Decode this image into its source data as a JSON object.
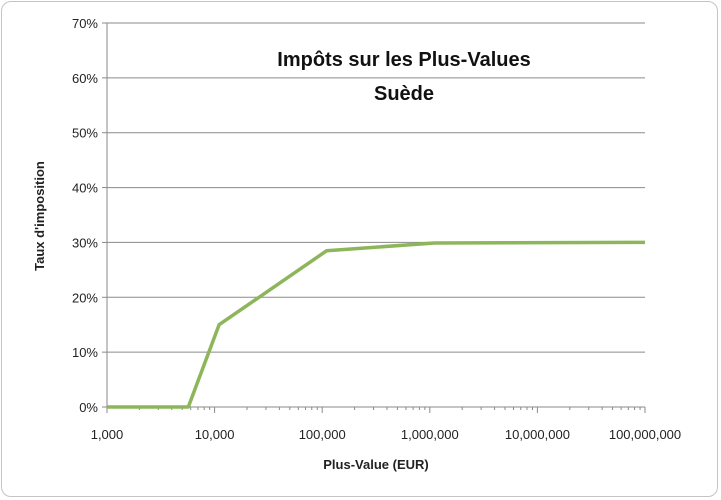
{
  "chart_data": {
    "type": "line",
    "title": [
      "Impôts sur les Plus-Values",
      "Suède"
    ],
    "xlabel": "Plus-Value (EUR)",
    "ylabel": "Taux d'imposition",
    "x_scale": "log",
    "xlim": [
      1000,
      100000000
    ],
    "ylim": [
      0,
      70
    ],
    "x_ticks": [
      1000,
      10000,
      100000,
      1000000,
      10000000,
      100000000
    ],
    "x_tick_labels": [
      "1,000",
      "10,000",
      "100,000",
      "1,000,000",
      "10,000,000",
      "100,000,000"
    ],
    "y_ticks": [
      0,
      10,
      20,
      30,
      40,
      50,
      60,
      70
    ],
    "y_tick_labels": [
      "0%",
      "10%",
      "20%",
      "30%",
      "40%",
      "50%",
      "60%",
      "70%"
    ],
    "grid": "horizontal",
    "series": [
      {
        "color": "#8db55a",
        "x": [
          1000,
          5700,
          11000,
          110000,
          1100000,
          100000000
        ],
        "y": [
          0,
          0,
          15,
          28.5,
          29.9,
          30
        ]
      }
    ]
  }
}
